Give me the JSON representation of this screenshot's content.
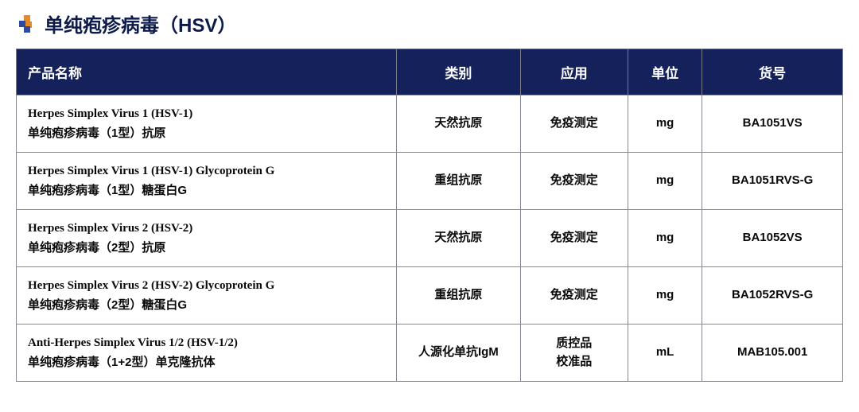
{
  "title": "单纯疱疹病毒（HSV）",
  "icon_colors": {
    "orange": "#e58a2b",
    "blue": "#2b4aa0"
  },
  "header_bg": "#14215a",
  "header_fg": "#ffffff",
  "border_color": "#888894",
  "columns": [
    {
      "key": "name",
      "label": "产品名称",
      "align": "left"
    },
    {
      "key": "category",
      "label": "类别",
      "align": "center"
    },
    {
      "key": "application",
      "label": "应用",
      "align": "center"
    },
    {
      "key": "unit",
      "label": "单位",
      "align": "center"
    },
    {
      "key": "code",
      "label": "货号",
      "align": "center"
    }
  ],
  "rows": [
    {
      "name_en": "Herpes Simplex Virus 1 (HSV-1)",
      "name_cn": "单纯疱疹病毒（1型）抗原",
      "category": "天然抗原",
      "application": [
        "免疫测定"
      ],
      "unit": "mg",
      "code": "BA1051VS"
    },
    {
      "name_en": "Herpes Simplex Virus 1 (HSV-1) Glycoprotein G",
      "name_cn": "单纯疱疹病毒（1型）糖蛋白G",
      "category": "重组抗原",
      "application": [
        "免疫测定"
      ],
      "unit": "mg",
      "code": "BA1051RVS-G"
    },
    {
      "name_en": "Herpes Simplex Virus 2 (HSV-2)",
      "name_cn": "单纯疱疹病毒（2型）抗原",
      "category": "天然抗原",
      "application": [
        "免疫测定"
      ],
      "unit": "mg",
      "code": "BA1052VS"
    },
    {
      "name_en": "Herpes Simplex Virus 2 (HSV-2) Glycoprotein G",
      "name_cn": "单纯疱疹病毒（2型）糖蛋白G",
      "category": "重组抗原",
      "application": [
        "免疫测定"
      ],
      "unit": "mg",
      "code": "BA1052RVS-G"
    },
    {
      "name_en": "Anti-Herpes Simplex Virus 1/2 (HSV-1/2)",
      "name_cn": "单纯疱疹病毒（1+2型）单克隆抗体",
      "category": "人源化单抗IgM",
      "application": [
        "质控品",
        "校准品"
      ],
      "unit": "mL",
      "code": "MAB105.001"
    }
  ]
}
